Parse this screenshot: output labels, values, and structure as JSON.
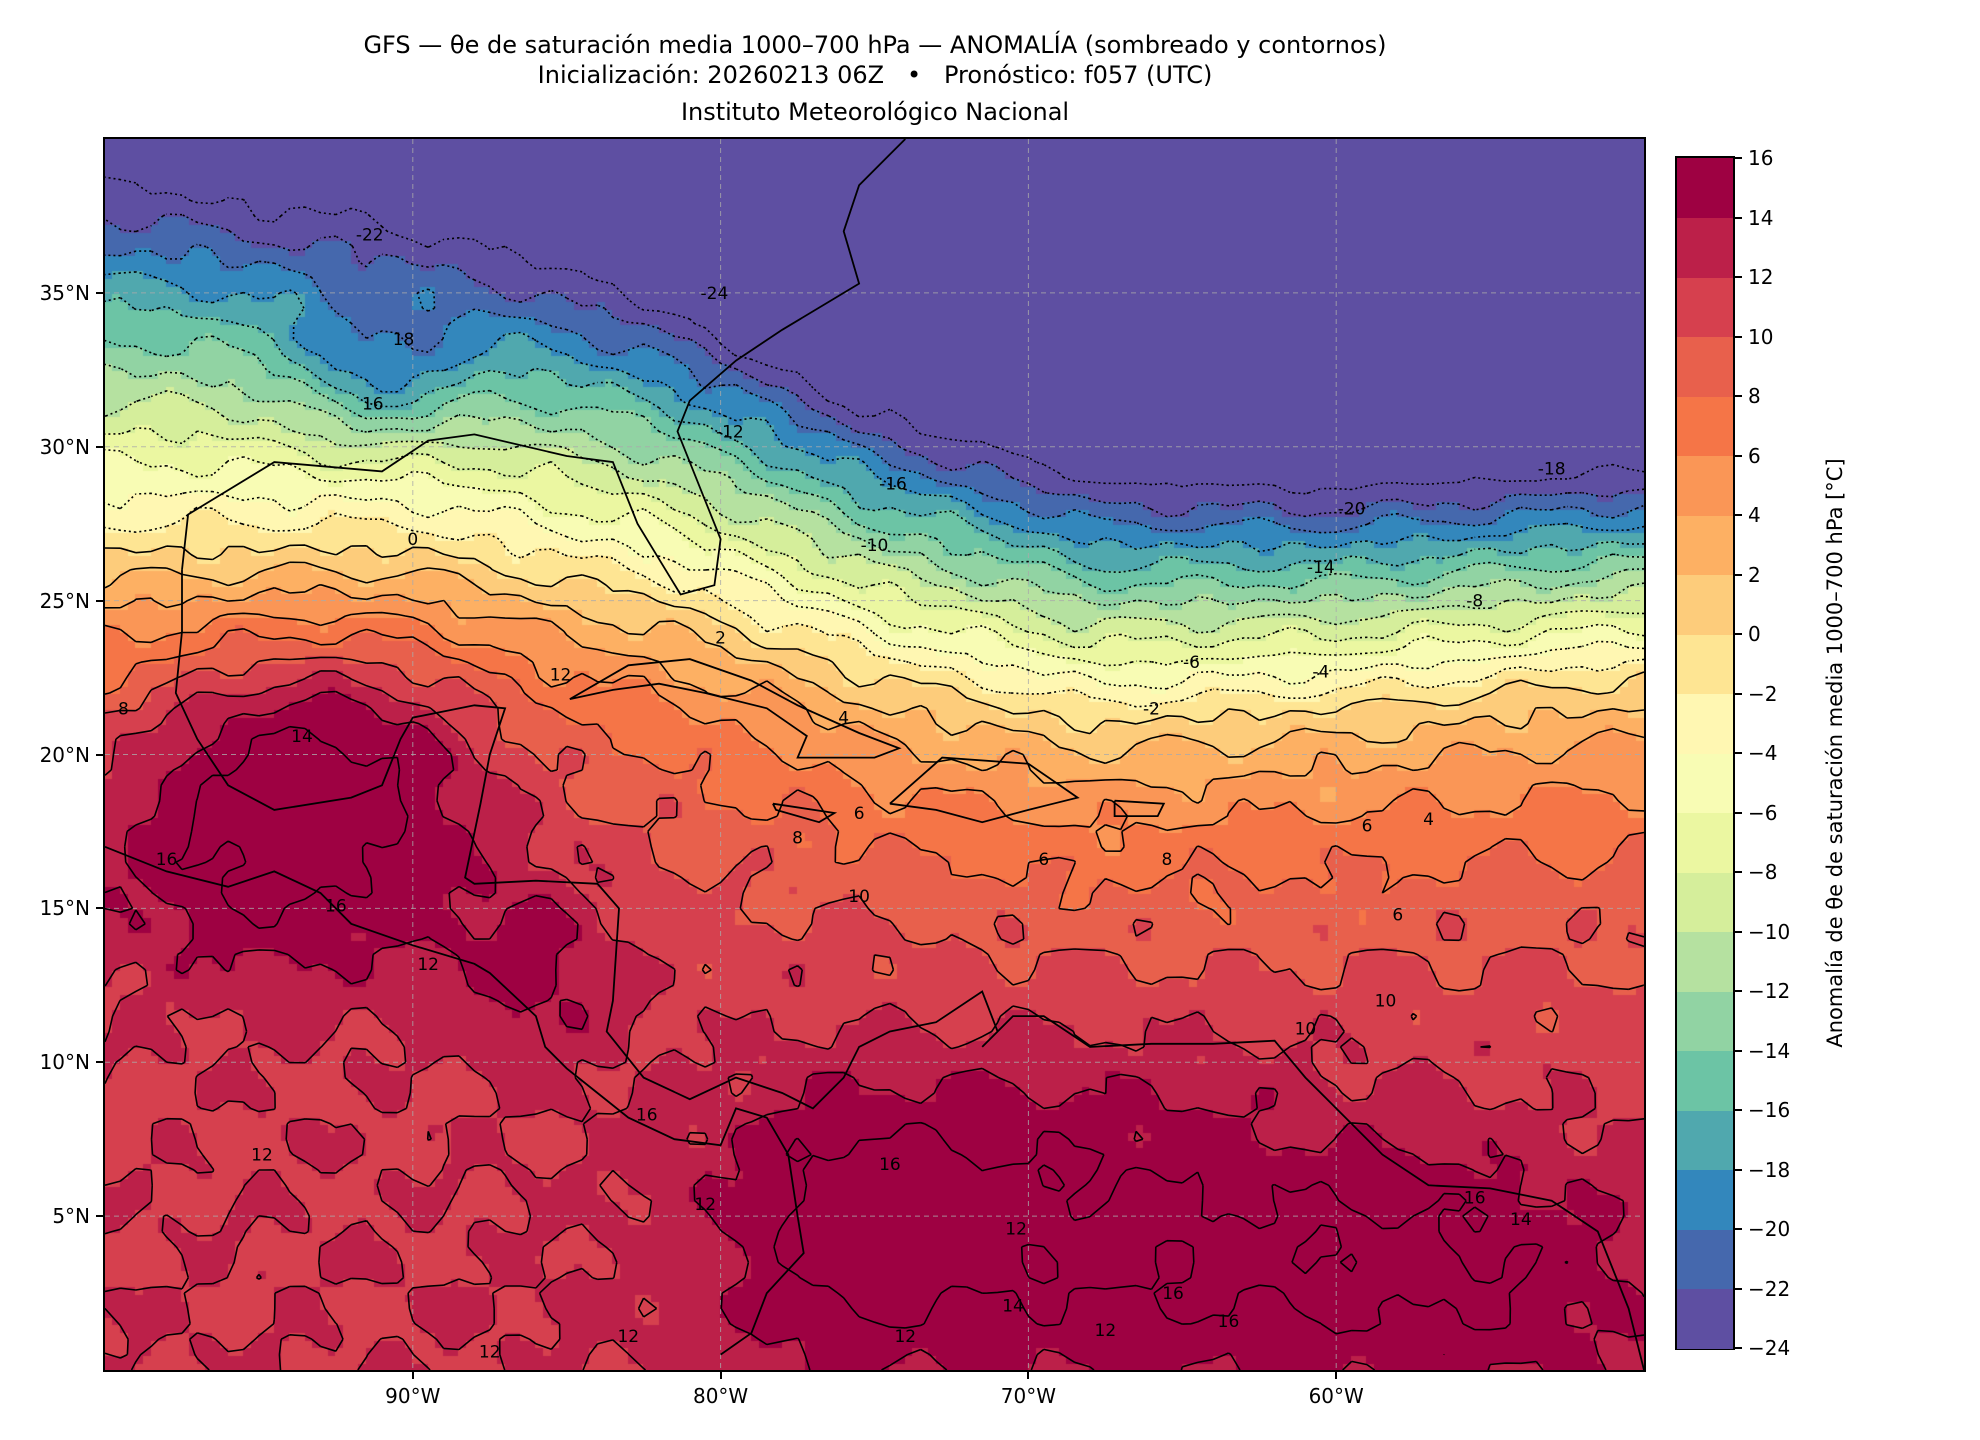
{
  "header": {
    "title_line1": "GFS — θe de saturación media 1000–700 hPa — ANOMALÍA (sombreado y contornos)",
    "title_line2": "Inicialización: 20260213 06Z   •   Pronóstico: f057 (UTC)",
    "title_line3": "Instituto Meteorológico Nacional"
  },
  "chart_data": {
    "type": "heatmap",
    "variable": "Anomalía de θe de saturación media 1000–700 hPa",
    "extent": {
      "lon": [
        -100,
        -50
      ],
      "lat": [
        0,
        40
      ]
    },
    "x_ticks": [
      {
        "value": -90,
        "label": "90°W"
      },
      {
        "value": -80,
        "label": "80°W"
      },
      {
        "value": -70,
        "label": "70°W"
      },
      {
        "value": -60,
        "label": "60°W"
      }
    ],
    "y_ticks": [
      {
        "value": 5,
        "label": "5°N"
      },
      {
        "value": 10,
        "label": "10°N"
      },
      {
        "value": 15,
        "label": "15°N"
      },
      {
        "value": 20,
        "label": "20°N"
      },
      {
        "value": 25,
        "label": "25°N"
      },
      {
        "value": 30,
        "label": "30°N"
      },
      {
        "value": 35,
        "label": "35°N"
      }
    ],
    "grid": true,
    "levels": [
      -24,
      -22,
      -20,
      -18,
      -16,
      -14,
      -12,
      -10,
      -8,
      -6,
      -4,
      -2,
      0,
      2,
      4,
      6,
      8,
      10,
      12,
      14,
      16
    ],
    "colors": [
      "#5e4fa2",
      "#4568ad",
      "#3387bc",
      "#50a8ae",
      "#6cc4a5",
      "#91d3a3",
      "#b5e1a0",
      "#d5ee9b",
      "#ebf7a1",
      "#f8fcb4",
      "#fff7b2",
      "#fee593",
      "#fdcc7b",
      "#fdb063",
      "#fa9656",
      "#f57547",
      "#e8604c",
      "#d6404e",
      "#bc2049",
      "#9e0142"
    ],
    "colorbar": {
      "label": "Anomalía de θe de saturación media 1000–700 hPa [°C]",
      "ticks": [
        "16",
        "14",
        "12",
        "10",
        "8",
        "6",
        "4",
        "2",
        "0",
        "−2",
        "−4",
        "−6",
        "−8",
        "−10",
        "−12",
        "−14",
        "−16",
        "−18",
        "−20",
        "−22",
        "−24"
      ]
    },
    "contour_labels": [
      {
        "text": "-22",
        "lon": -91.4,
        "lat": 36.9
      },
      {
        "text": "-24",
        "lon": -80.2,
        "lat": 35
      },
      {
        "text": "18",
        "lon": -90.3,
        "lat": 33.5
      },
      {
        "text": "16",
        "lon": -91.3,
        "lat": 31.4
      },
      {
        "text": "-12",
        "lon": -79.7,
        "lat": 30.5
      },
      {
        "text": "-16",
        "lon": -74.4,
        "lat": 28.8
      },
      {
        "text": "-20",
        "lon": -59.5,
        "lat": 28
      },
      {
        "text": "-18",
        "lon": -53,
        "lat": 29.3
      },
      {
        "text": "-10",
        "lon": -75,
        "lat": 26.8
      },
      {
        "text": "-14",
        "lon": -60.5,
        "lat": 26.1
      },
      {
        "text": "0",
        "lon": -90,
        "lat": 27
      },
      {
        "text": "-8",
        "lon": -55.5,
        "lat": 25
      },
      {
        "text": "2",
        "lon": -80,
        "lat": 23.8
      },
      {
        "text": "-6",
        "lon": -64.7,
        "lat": 23
      },
      {
        "text": "-4",
        "lon": -60.5,
        "lat": 22.7
      },
      {
        "text": "-2",
        "lon": -66,
        "lat": 21.5
      },
      {
        "text": "12",
        "lon": -85.2,
        "lat": 22.6
      },
      {
        "text": "8",
        "lon": -99.4,
        "lat": 21.5
      },
      {
        "text": "14",
        "lon": -93.6,
        "lat": 20.6
      },
      {
        "text": "4",
        "lon": -76,
        "lat": 21.2
      },
      {
        "text": "6",
        "lon": -75.5,
        "lat": 18.1
      },
      {
        "text": "8",
        "lon": -77.5,
        "lat": 17.3
      },
      {
        "text": "6",
        "lon": -69.5,
        "lat": 16.6
      },
      {
        "text": "8",
        "lon": -65.5,
        "lat": 16.6
      },
      {
        "text": "6",
        "lon": -59,
        "lat": 17.7
      },
      {
        "text": "4",
        "lon": -57,
        "lat": 17.9
      },
      {
        "text": "6",
        "lon": -58,
        "lat": 14.8
      },
      {
        "text": "16",
        "lon": -98,
        "lat": 16.6
      },
      {
        "text": "16",
        "lon": -92.5,
        "lat": 15.1
      },
      {
        "text": "12",
        "lon": -89.5,
        "lat": 13.2
      },
      {
        "text": "10",
        "lon": -75.5,
        "lat": 15.4
      },
      {
        "text": "10",
        "lon": -58.4,
        "lat": 12
      },
      {
        "text": "10",
        "lon": -61,
        "lat": 11.1
      },
      {
        "text": "12",
        "lon": -94.9,
        "lat": 7
      },
      {
        "text": "12",
        "lon": -80.5,
        "lat": 5.4
      },
      {
        "text": "16",
        "lon": -82.4,
        "lat": 8.3
      },
      {
        "text": "16",
        "lon": -74.5,
        "lat": 6.7
      },
      {
        "text": "16",
        "lon": -55.5,
        "lat": 5.6
      },
      {
        "text": "14",
        "lon": -54,
        "lat": 4.9
      },
      {
        "text": "16",
        "lon": -65.3,
        "lat": 2.5
      },
      {
        "text": "16",
        "lon": -63.5,
        "lat": 1.6
      },
      {
        "text": "12",
        "lon": -83,
        "lat": 1.1
      },
      {
        "text": "12",
        "lon": -74,
        "lat": 1.1
      },
      {
        "text": "12",
        "lon": -87.5,
        "lat": 0.6
      },
      {
        "text": "14",
        "lon": -70.5,
        "lat": 2.1
      },
      {
        "text": "12",
        "lon": -67.5,
        "lat": 1.3
      },
      {
        "text": "12",
        "lon": -70.4,
        "lat": 4.6
      }
    ]
  }
}
